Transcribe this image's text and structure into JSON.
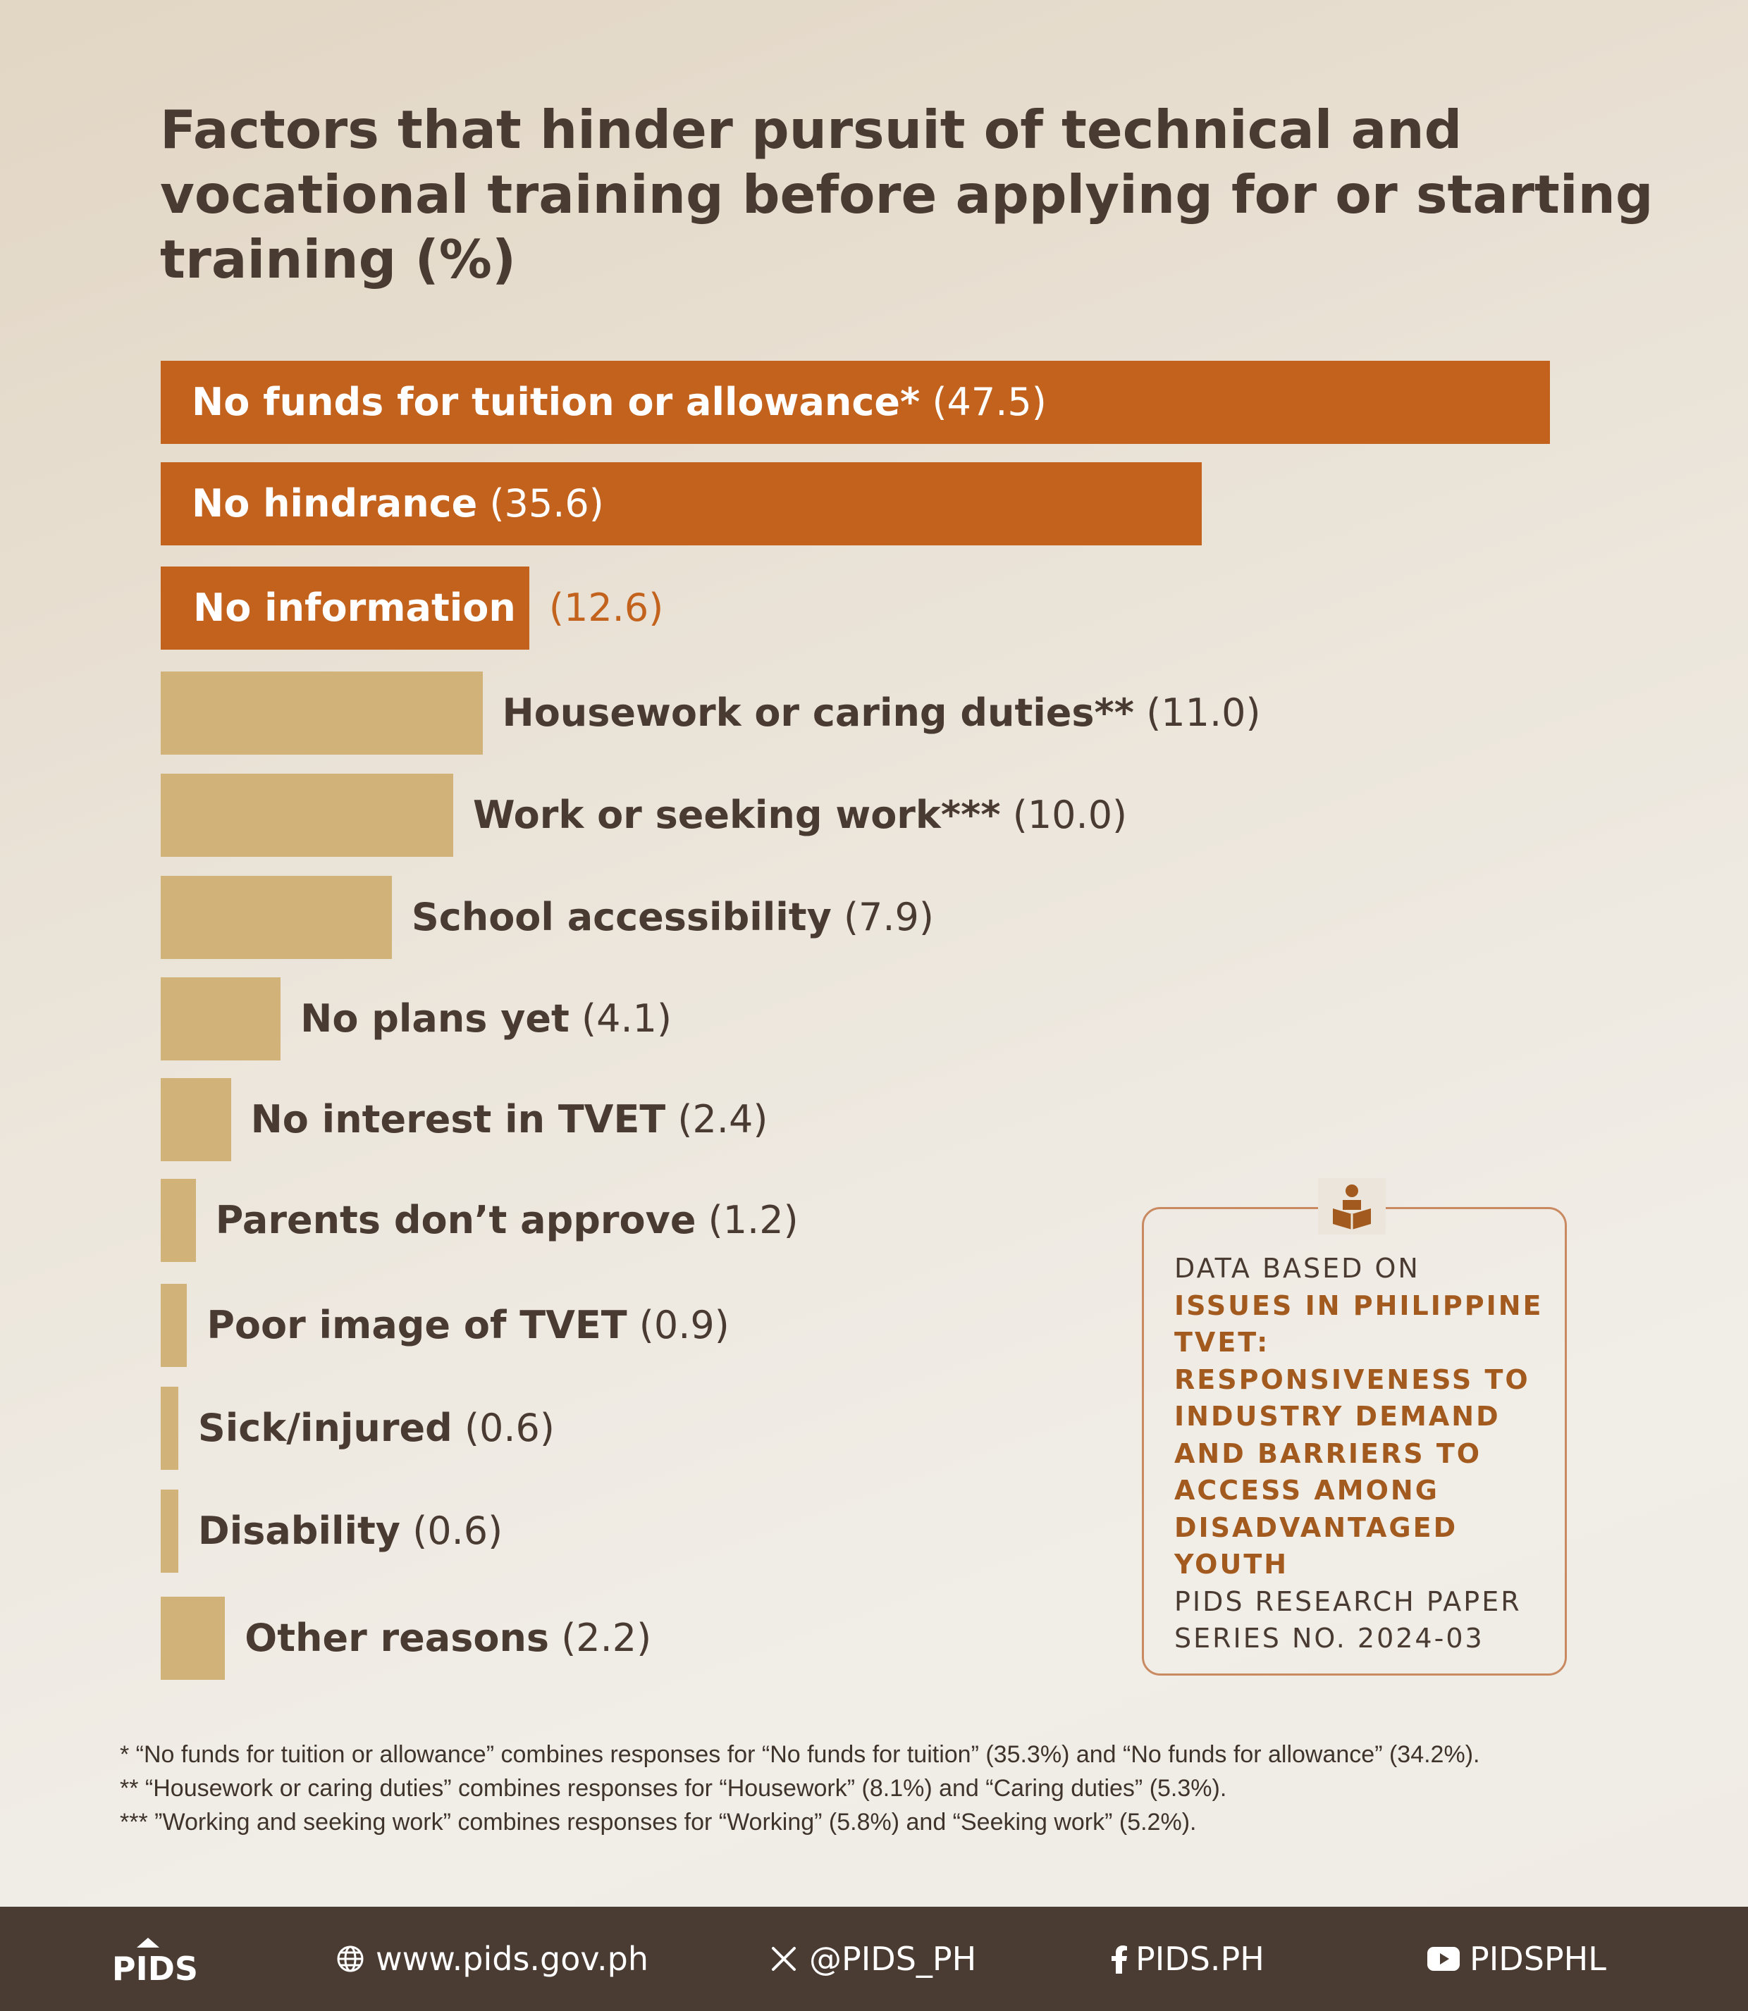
{
  "title": "Factors that hinder pursuit of technical and vocational training before applying for or starting training (%)",
  "chart_data": {
    "type": "bar",
    "orientation": "horizontal",
    "title": "Factors that hinder pursuit of technical and vocational training before applying for or starting training (%)",
    "categories": [
      "No funds for tuition or allowance*",
      "No hindrance",
      "No information",
      "Housework or caring duties**",
      "Work or seeking work***",
      "School accessibility",
      "No plans yet",
      "No interest in TVET",
      "Parents don’t approve",
      "Poor image of TVET",
      "Sick/injured",
      "Disability",
      "Other reasons"
    ],
    "values": [
      47.5,
      35.6,
      12.6,
      11.0,
      10.0,
      7.9,
      4.1,
      2.4,
      1.2,
      0.9,
      0.6,
      0.6,
      2.2
    ],
    "value_labels": [
      "(47.5)",
      "(35.6)",
      "(12.6)",
      "(11.0)",
      "(10.0)",
      "(7.9)",
      "(4.1)",
      "(2.4)",
      "(1.2)",
      "(0.9)",
      "(0.6)",
      "(0.6)",
      "(2.2)"
    ],
    "highlighted_count": 3,
    "colors": {
      "highlight": "#c2621c",
      "other": "#d1b37a"
    },
    "grid": false,
    "legend": "none",
    "xlabel": "",
    "ylabel": ""
  },
  "source": {
    "label": "DATA BASED ON",
    "paper_title": "ISSUES IN PHILIPPINE TVET: RESPONSIVENESS TO INDUSTRY DEMAND AND BARRIERS TO ACCESS AMONG DISADVANTAGED YOUTH",
    "series": "PIDS RESEARCH PAPER SERIES NO. 2024-03",
    "icon": "reading-person-icon"
  },
  "notes": [
    "* “No funds for tuition or allowance” combines responses for “No funds for tuition” (35.3%) and “No funds for allowance” (34.2%).",
    "** “Housework or caring duties” combines responses for “Housework” (8.1%) and “Caring duties” (5.3%).",
    "*** ”Working and seeking work” combines responses for “Working” (5.8%) and “Seeking work” (5.2%)."
  ],
  "footer": {
    "logo_text": "PIDS",
    "website": "www.pids.gov.ph",
    "x_handle": "@PIDS_PH",
    "facebook": "PIDS.PH",
    "youtube": "PIDSPHL",
    "icons": [
      "globe-icon",
      "x-icon",
      "facebook-icon",
      "youtube-icon"
    ]
  }
}
